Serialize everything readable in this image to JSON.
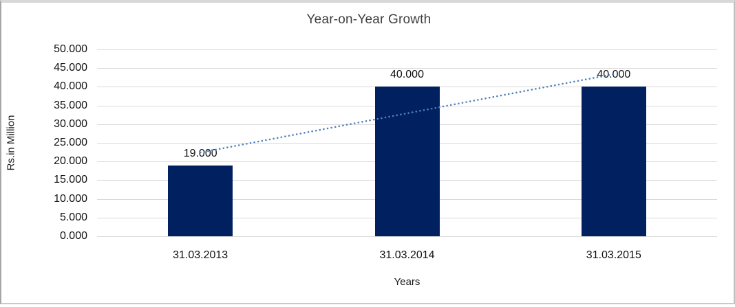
{
  "chart_data": {
    "type": "bar",
    "title": "Year-on-Year Growth",
    "xlabel": "Years",
    "ylabel": "Rs.in Million",
    "categories": [
      "31.03.2013",
      "31.03.2014",
      "31.03.2015"
    ],
    "values": [
      19,
      40,
      40
    ],
    "value_labels": [
      "19.000",
      "40.000",
      "40.000"
    ],
    "ylim": [
      0,
      50
    ],
    "ytick_step": 5,
    "ytick_labels": [
      "0.000",
      "5.000",
      "10.000",
      "15.000",
      "20.000",
      "25.000",
      "30.000",
      "35.000",
      "40.000",
      "45.000",
      "50.000"
    ],
    "grid": true,
    "legend_position": "none",
    "bar_color": "#002060",
    "gridline_color": "#d9d9d9",
    "trendline": {
      "type": "linear",
      "style": "dotted",
      "color": "#4f81bd",
      "start_value": 22.4,
      "end_value": 43.4
    }
  },
  "layout_hints": {
    "note": "single clustered column chart, no legend, data labels above bars"
  }
}
